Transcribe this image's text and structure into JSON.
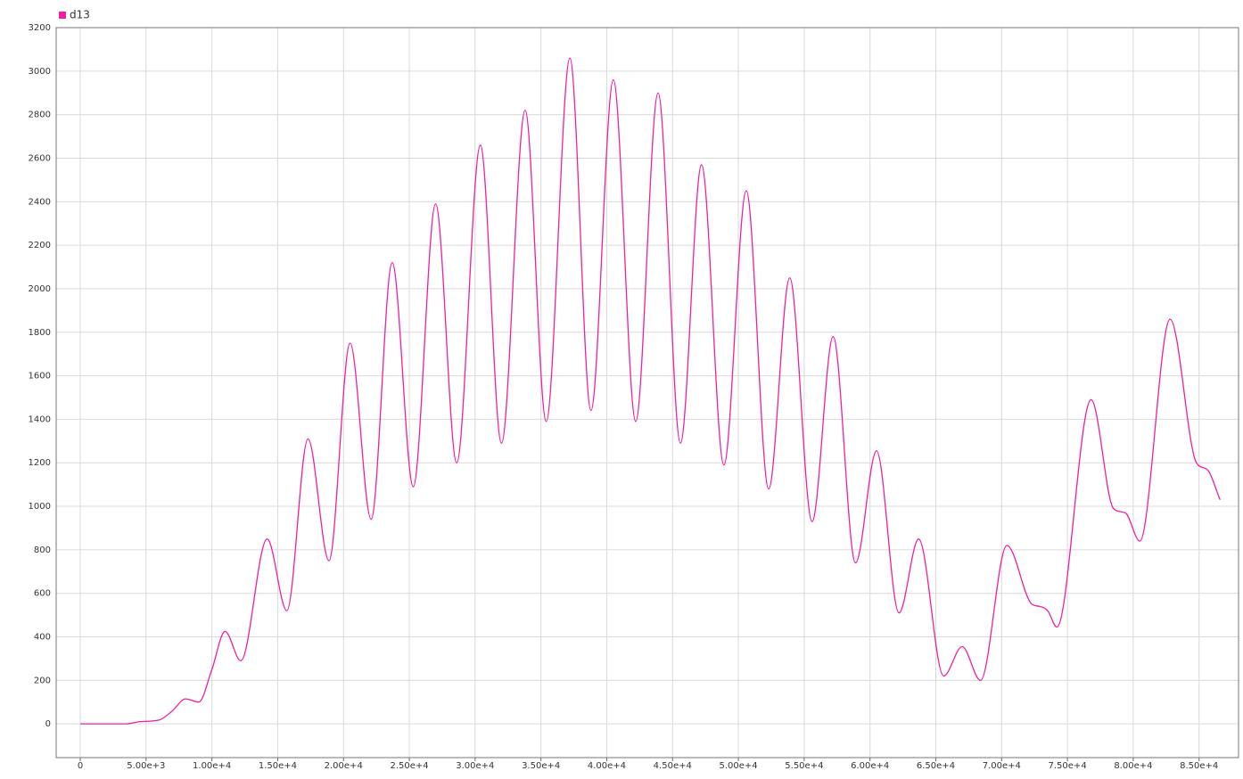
{
  "chart_data": {
    "type": "line",
    "x": [
      0,
      3500,
      4500,
      6000,
      7000,
      8000,
      9000,
      10000,
      11000,
      12200,
      14200,
      15700,
      17300,
      18900,
      20500,
      22100,
      23700,
      25300,
      27000,
      28600,
      30400,
      32000,
      33800,
      35400,
      37200,
      38800,
      40500,
      42200,
      43900,
      45600,
      47200,
      48900,
      50600,
      52300,
      53900,
      55600,
      57200,
      58900,
      60500,
      62200,
      63700,
      65600,
      67000,
      68400,
      70400,
      72300,
      72900,
      73500,
      74200,
      76800,
      78500,
      79400,
      80500,
      82800,
      84800,
      85600,
      86600
    ],
    "series": [
      {
        "name": "d13",
        "color": "#f01ea0",
        "values": [
          0,
          0,
          10,
          18,
          60,
          115,
          100,
          250,
          425,
          290,
          850,
          520,
          1310,
          750,
          1750,
          940,
          2120,
          1090,
          2390,
          1200,
          2660,
          1290,
          2820,
          1390,
          3060,
          1440,
          2960,
          1390,
          2900,
          1290,
          2570,
          1190,
          2450,
          1080,
          2050,
          930,
          1780,
          740,
          1255,
          510,
          850,
          220,
          355,
          200,
          820,
          550,
          540,
          520,
          445,
          1490,
          990,
          970,
          840,
          1860,
          1200,
          1170,
          1030
        ]
      }
    ],
    "xlim": [
      -1830,
      88000
    ],
    "ylim": [
      -155,
      3200
    ],
    "xticks": [
      0,
      {
        "value": 5000,
        "label": "5.00e+3"
      },
      {
        "value": 10000,
        "label": "1.00e+4"
      },
      {
        "value": 15000,
        "label": "1.50e+4"
      },
      {
        "value": 20000,
        "label": "2.00e+4"
      },
      {
        "value": 25000,
        "label": "2.50e+4"
      },
      {
        "value": 30000,
        "label": "3.00e+4"
      },
      {
        "value": 35000,
        "label": "3.50e+4"
      },
      {
        "value": 40000,
        "label": "4.00e+4"
      },
      {
        "value": 45000,
        "label": "4.50e+4"
      },
      {
        "value": 50000,
        "label": "5.00e+4"
      },
      {
        "value": 55000,
        "label": "5.50e+4"
      },
      {
        "value": 60000,
        "label": "6.00e+4"
      },
      {
        "value": 65000,
        "label": "6.50e+4"
      },
      {
        "value": 70000,
        "label": "7.00e+4"
      },
      {
        "value": 75000,
        "label": "7.50e+4"
      },
      {
        "value": 80000,
        "label": "8.00e+4"
      },
      {
        "value": 85000,
        "label": "8.50e+4"
      }
    ],
    "yticks": [
      0,
      200,
      400,
      600,
      800,
      1000,
      1200,
      1400,
      1600,
      1800,
      2000,
      2200,
      2400,
      2600,
      2800,
      3000,
      3200
    ],
    "grid": true,
    "legend": "top-left"
  }
}
